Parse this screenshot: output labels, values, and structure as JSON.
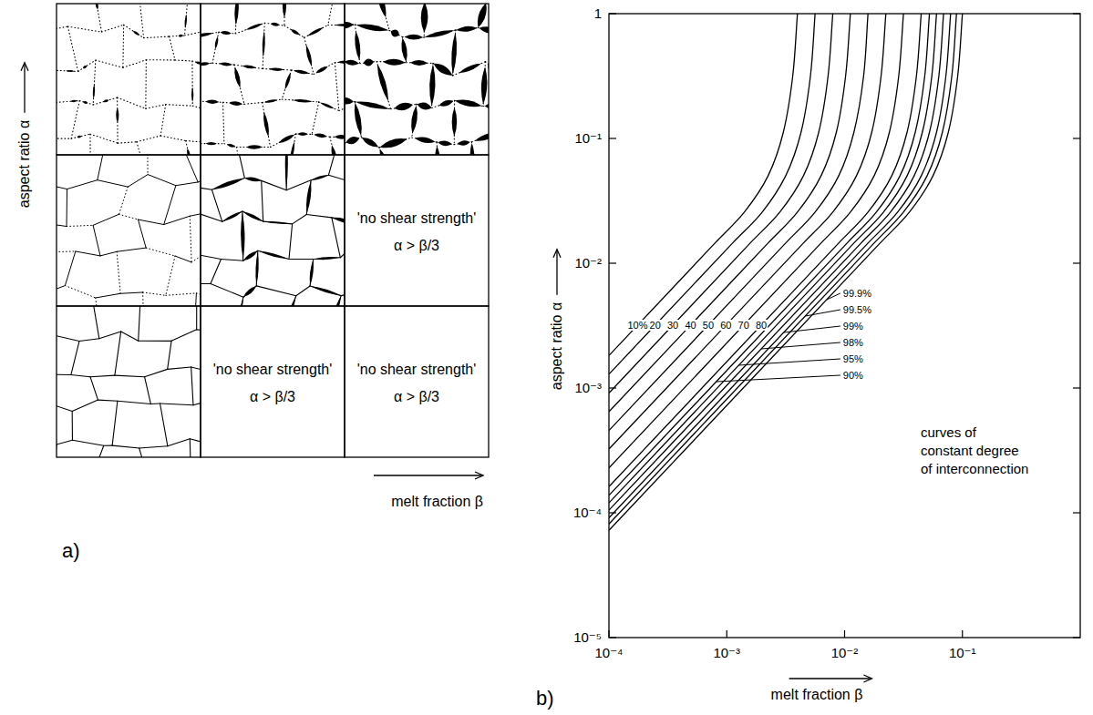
{
  "panel_a": {
    "label": "a)",
    "y_axis_label": "aspect ratio α",
    "x_axis_label": "melt fraction β",
    "cells": [
      {
        "text": "'no shear strength'",
        "condition": "α > β/3"
      },
      {
        "text": "'no shear strength'",
        "condition": "α > β/3"
      },
      {
        "text": "'no shear strength'",
        "condition": "α > β/3"
      }
    ]
  },
  "chart_data": {
    "type": "line",
    "panel_label": "b)",
    "x_label": "melt fraction β",
    "y_label": "aspect ratio α",
    "annotations": [
      {
        "text": "curves of\nconstant degree\nof interconnection"
      }
    ],
    "log": true,
    "xlim": [
      0.0001,
      1
    ],
    "ylim": [
      1e-05,
      1
    ],
    "xticks": [
      {
        "value": 0.0001,
        "label": "10⁻⁴"
      },
      {
        "value": 0.001,
        "label": "10⁻³"
      },
      {
        "value": 0.01,
        "label": "10⁻²"
      },
      {
        "value": 0.1,
        "label": "10⁻¹"
      }
    ],
    "yticks": [
      {
        "value": 1e-05,
        "label": "10⁻⁵"
      },
      {
        "value": 0.0001,
        "label": "10⁻⁴"
      },
      {
        "value": 0.001,
        "label": "10⁻³"
      },
      {
        "value": 0.01,
        "label": "10⁻²"
      },
      {
        "value": 0.1,
        "label": "10⁻¹"
      },
      1
    ],
    "line_style": "solid",
    "series": [
      {
        "name": "10%",
        "color": "#000000",
        "x": [
          0.0001,
          0.000794,
          0.00141,
          0.00224,
          0.00302,
          0.00363,
          0.00398
        ],
        "values": [
          0.00182,
          0.0145,
          0.0257,
          0.0501,
          0.112,
          0.316,
          1
        ]
      },
      {
        "name": "20",
        "color": "#000000",
        "x": [
          0.0001,
          0.00112,
          0.002,
          0.00316,
          0.00427,
          0.00513,
          0.00562
        ],
        "values": [
          0.00129,
          0.0145,
          0.0257,
          0.0501,
          0.112,
          0.316,
          1
        ]
      },
      {
        "name": "30",
        "color": "#000000",
        "x": [
          0.0001,
          0.00158,
          0.00282,
          0.00447,
          0.00603,
          0.00724,
          0.00794
        ],
        "values": [
          0.000912,
          0.0145,
          0.0257,
          0.0501,
          0.112,
          0.316,
          1
        ]
      },
      {
        "name": "40",
        "color": "#000000",
        "x": [
          0.0001,
          0.00224,
          0.00398,
          0.00631,
          0.00851,
          0.0102,
          0.0112
        ],
        "values": [
          0.000646,
          0.0145,
          0.0257,
          0.0501,
          0.112,
          0.316,
          1
        ]
      },
      {
        "name": "50",
        "color": "#000000",
        "x": [
          0.0001,
          0.00316,
          0.00562,
          0.00891,
          0.012,
          0.0145,
          0.0158
        ],
        "values": [
          0.000457,
          0.0145,
          0.0257,
          0.0501,
          0.112,
          0.316,
          1
        ]
      },
      {
        "name": "60",
        "color": "#000000",
        "x": [
          0.0001,
          0.00447,
          0.00794,
          0.0126,
          0.017,
          0.0204,
          0.0224
        ],
        "values": [
          0.000324,
          0.0145,
          0.0257,
          0.0501,
          0.112,
          0.316,
          1
        ]
      },
      {
        "name": "70",
        "color": "#000000",
        "x": [
          0.0001,
          0.00631,
          0.0112,
          0.0178,
          0.024,
          0.0288,
          0.0316
        ],
        "values": [
          0.000229,
          0.0145,
          0.0257,
          0.0501,
          0.112,
          0.316,
          1
        ]
      },
      {
        "name": "80",
        "color": "#000000",
        "x": [
          0.0001,
          0.00891,
          0.0158,
          0.0251,
          0.0339,
          0.0407,
          0.0447
        ],
        "values": [
          0.000162,
          0.0145,
          0.0257,
          0.0501,
          0.112,
          0.316,
          1
        ]
      },
      {
        "name": "90%",
        "color": "#000000",
        "x": [
          0.0001,
          0.0105,
          0.0186,
          0.0295,
          0.0398,
          0.0479,
          0.0525
        ],
        "values": [
          0.000138,
          0.0145,
          0.0257,
          0.0501,
          0.112,
          0.316,
          1
        ]
      },
      {
        "name": "95%",
        "color": "#000000",
        "x": [
          0.0001,
          0.012,
          0.0214,
          0.0339,
          0.0457,
          0.055,
          0.0603
        ],
        "values": [
          0.00012,
          0.0145,
          0.0257,
          0.0501,
          0.112,
          0.316,
          1
        ]
      },
      {
        "name": "98%",
        "color": "#000000",
        "x": [
          0.0001,
          0.0138,
          0.0245,
          0.0389,
          0.0525,
          0.0631,
          0.0692
        ],
        "values": [
          0.000105,
          0.0145,
          0.0257,
          0.0501,
          0.112,
          0.316,
          1
        ]
      },
      {
        "name": "99%",
        "color": "#000000",
        "x": [
          0.0001,
          0.0158,
          0.0282,
          0.0447,
          0.0603,
          0.0724,
          0.0794
        ],
        "values": [
          9.12e-05,
          0.0145,
          0.0257,
          0.0501,
          0.112,
          0.316,
          1
        ]
      },
      {
        "name": "99.5%",
        "color": "#000000",
        "x": [
          0.0001,
          0.0178,
          0.0316,
          0.0501,
          0.0676,
          0.0813,
          0.0891
        ],
        "values": [
          8.13e-05,
          0.0145,
          0.0257,
          0.0501,
          0.112,
          0.316,
          1
        ]
      },
      {
        "name": "99.9%",
        "color": "#000000",
        "x": [
          0.0001,
          0.02,
          0.0355,
          0.0562,
          0.0759,
          0.0912,
          0.1
        ],
        "values": [
          7.24e-05,
          0.0145,
          0.0257,
          0.0501,
          0.112,
          0.316,
          1
        ]
      }
    ]
  }
}
